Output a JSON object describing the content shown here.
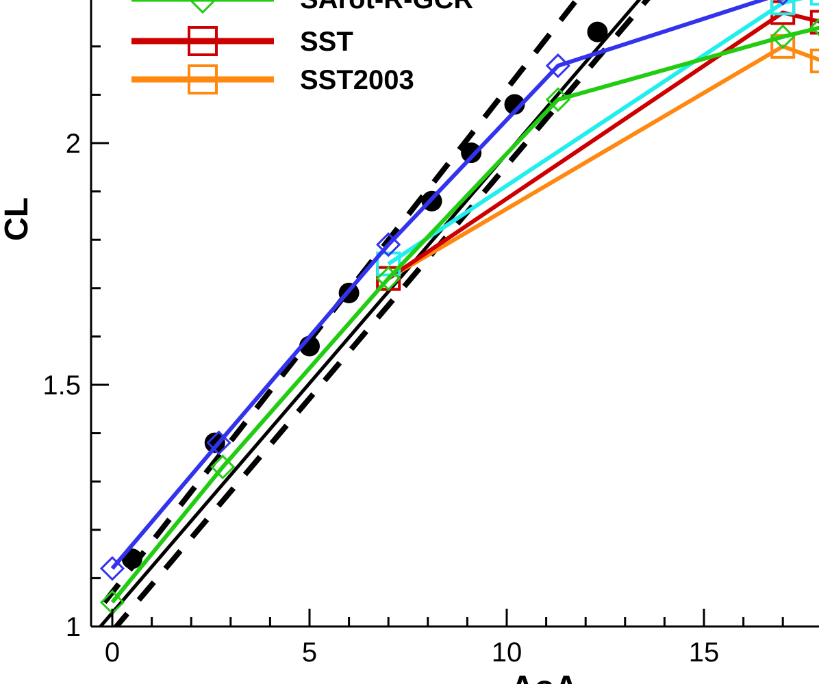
{
  "chart_data": {
    "type": "line",
    "xlabel": "AoA",
    "ylabel": "CL",
    "xlim": [
      -0.4,
      18
    ],
    "ylim": [
      1,
      2.3
    ],
    "x_ticks": [
      "0",
      "5",
      "10",
      "15"
    ],
    "x_tick_values": [
      0,
      5,
      10,
      15
    ],
    "y_ticks": [
      "1",
      "1.5",
      "2"
    ],
    "y_tick_values": [
      1,
      1.5,
      2
    ],
    "grid": false,
    "legend_position": "top-left",
    "experiment": {
      "markers": [
        {
          "x": 0.5,
          "y": 1.14
        },
        {
          "x": 2.6,
          "y": 1.38
        },
        {
          "x": 5.0,
          "y": 1.58
        },
        {
          "x": 6.0,
          "y": 1.69
        },
        {
          "x": 8.1,
          "y": 1.88
        },
        {
          "x": 9.1,
          "y": 1.98
        },
        {
          "x": 10.2,
          "y": 2.08
        },
        {
          "x": 12.3,
          "y": 2.23
        }
      ],
      "line": [
        {
          "x": -0.3,
          "y": 1.0
        },
        {
          "x": 13.5,
          "y": 2.31
        }
      ],
      "band_upper": [
        {
          "x": -0.2,
          "y": 1.05
        },
        {
          "x": 12.0,
          "y": 2.32
        }
      ],
      "band_lower": [
        {
          "x": 0.0,
          "y": 0.99
        },
        {
          "x": 13.8,
          "y": 2.32
        }
      ],
      "color": "#000000"
    },
    "series": [
      {
        "name": "SARotRGCR",
        "legend_label": "SArot-R-GCR",
        "color": "#22cc11",
        "marker": "diamond",
        "points": [
          {
            "x": 0.0,
            "y": 1.05
          },
          {
            "x": 2.8,
            "y": 1.33
          },
          {
            "x": 7.0,
            "y": 1.72
          },
          {
            "x": 11.3,
            "y": 2.09
          },
          {
            "x": 17.0,
            "y": 2.22
          },
          {
            "x": 18.0,
            "y": 2.24
          }
        ]
      },
      {
        "name": "SST",
        "legend_label": "SST",
        "color": "#cc0000",
        "marker": "square",
        "points": [
          {
            "x": 7.0,
            "y": 1.72
          },
          {
            "x": 17.0,
            "y": 2.27
          },
          {
            "x": 18.0,
            "y": 2.25
          }
        ]
      },
      {
        "name": "SST2003",
        "legend_label": "SST2003",
        "color": "#ff8811",
        "marker": "square",
        "points": [
          {
            "x": 7.0,
            "y": 1.72
          },
          {
            "x": 17.0,
            "y": 2.2
          },
          {
            "x": 18.0,
            "y": 2.17
          }
        ]
      },
      {
        "name": "cyan",
        "color": "#22eeee",
        "marker": "square",
        "points": [
          {
            "x": 7.0,
            "y": 1.75
          },
          {
            "x": 17.0,
            "y": 2.29
          },
          {
            "x": 18.0,
            "y": 2.31
          }
        ]
      },
      {
        "name": "blue",
        "color": "#3333ee",
        "marker": "diamond",
        "points": [
          {
            "x": 0.0,
            "y": 1.12
          },
          {
            "x": 2.7,
            "y": 1.38
          },
          {
            "x": 7.0,
            "y": 1.79
          },
          {
            "x": 11.3,
            "y": 2.16
          },
          {
            "x": 17.0,
            "y": 2.31
          }
        ]
      }
    ],
    "legend": [
      {
        "label": "SArot-R-GCR",
        "color": "#22cc11",
        "marker": "diamond"
      },
      {
        "label": "SST",
        "color": "#cc0000",
        "marker": "square"
      },
      {
        "label": "SST2003",
        "color": "#ff8811",
        "marker": "square"
      }
    ]
  }
}
